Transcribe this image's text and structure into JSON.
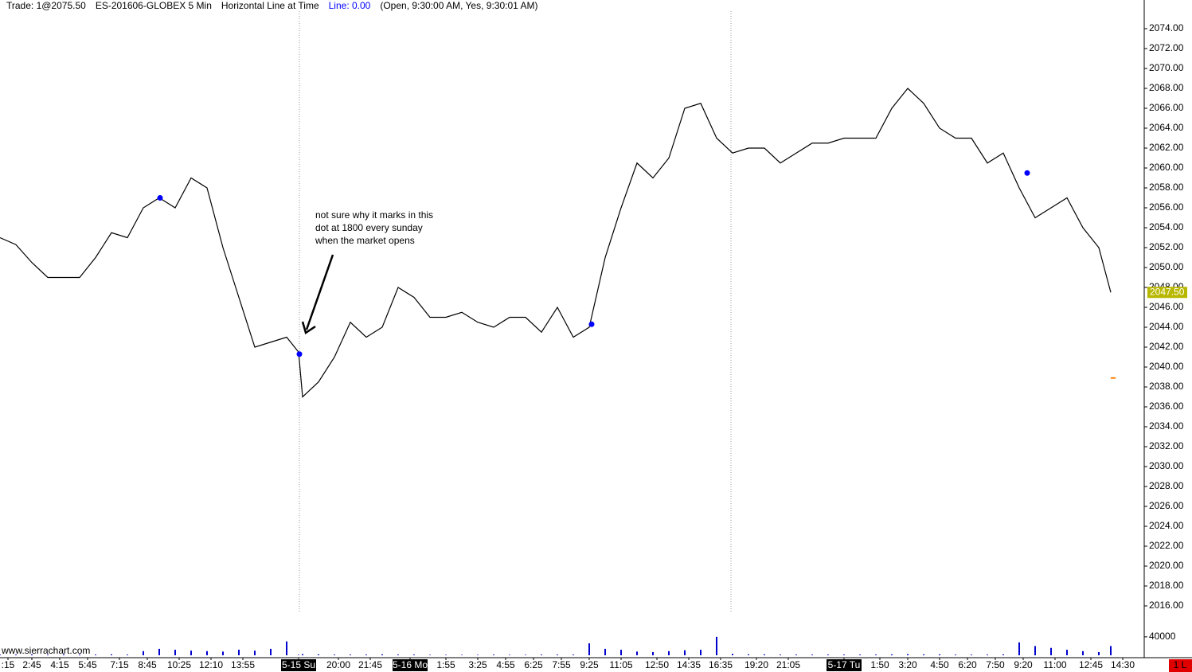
{
  "header": {
    "trade": "Trade: 1@2075.50",
    "symbol": "ES-201606-GLOBEX 5 Min",
    "study": "Horizontal Line at Time",
    "line": "Line: 0.00",
    "params": "(Open, 9:30:00 AM, Yes, 9:30:01 AM)"
  },
  "annotation": [
    "not sure why it marks in this",
    "dot at 1800 every sunday",
    "when the market opens"
  ],
  "watermark": "www.sierrachart.com",
  "status": "1 L",
  "chart_data": {
    "type": "line",
    "color": "#000000",
    "x": [
      0,
      4,
      8,
      12,
      16,
      20,
      24,
      28,
      32,
      36,
      40,
      44,
      48,
      52,
      56,
      60,
      64,
      68,
      72,
      75,
      76,
      80,
      84,
      88,
      92,
      96,
      100,
      104,
      108,
      112,
      116,
      120,
      124,
      128,
      132,
      136,
      140,
      144,
      148,
      152,
      156,
      160,
      164,
      168,
      172,
      176,
      180,
      184,
      188,
      192,
      196,
      200,
      204,
      208,
      212,
      216,
      220,
      224,
      228,
      232,
      236,
      240,
      244,
      248,
      252,
      256,
      260,
      264,
      268,
      272,
      276,
      279
    ],
    "values": [
      2053,
      2052.3,
      2050.5,
      2049,
      2049,
      2049,
      2051,
      2053.5,
      2053,
      2056,
      2057,
      2056,
      2059,
      2058,
      2052,
      2047,
      2042,
      2042.5,
      2043,
      2041.5,
      2037,
      2038.5,
      2041,
      2044.5,
      2043,
      2044,
      2048,
      2047,
      2045,
      2045,
      2045.5,
      2044.5,
      2044,
      2045,
      2045,
      2043.5,
      2046,
      2043,
      2044,
      2051,
      2056,
      2060.5,
      2059,
      2061,
      2066,
      2066.5,
      2063,
      2061.5,
      2062,
      2062,
      2060.5,
      2061.5,
      2062.5,
      2062.5,
      2063,
      2063,
      2063,
      2066,
      2068,
      2066.5,
      2064,
      2063,
      2063,
      2060.5,
      2061.5,
      2058,
      2055,
      2056,
      2057,
      2054,
      2052,
      2047.5
    ],
    "markers": {
      "color": "#0000ff",
      "x": [
        40.2,
        75.2,
        148.6,
        258
      ],
      "values": [
        2057,
        2041.3,
        2044.3,
        2059.5
      ]
    },
    "last_price": {
      "value": 2047.5,
      "label": "2047.50"
    },
    "pending_marker": 2038.9,
    "xlim": [
      0,
      287.4
    ],
    "ylim": [
      2015,
      2075.5
    ],
    "xticks": [
      {
        "value": 2,
        "label": ":15"
      },
      {
        "value": 8,
        "label": "2:45"
      },
      {
        "value": 15,
        "label": "4:15"
      },
      {
        "value": 22,
        "label": "5:45"
      },
      {
        "value": 30,
        "label": "7:15"
      },
      {
        "value": 37,
        "label": "8:45"
      },
      {
        "value": 45,
        "label": "10:25"
      },
      {
        "value": 53,
        "label": "12:10"
      },
      {
        "value": 61,
        "label": "13:55"
      },
      {
        "value": 75,
        "label": "5-15 Su",
        "session": true
      },
      {
        "value": 85,
        "label": "20:00"
      },
      {
        "value": 93,
        "label": "21:45"
      },
      {
        "value": 103,
        "label": "5-16 Mo",
        "session": true
      },
      {
        "value": 112,
        "label": "1:55"
      },
      {
        "value": 120,
        "label": "3:25"
      },
      {
        "value": 127,
        "label": "4:55"
      },
      {
        "value": 134,
        "label": "6:25"
      },
      {
        "value": 141,
        "label": "7:55"
      },
      {
        "value": 148,
        "label": "9:25"
      },
      {
        "value": 156,
        "label": "11:05"
      },
      {
        "value": 165,
        "label": "12:50"
      },
      {
        "value": 173,
        "label": "14:35"
      },
      {
        "value": 181,
        "label": "16:35"
      },
      {
        "value": 190,
        "label": "19:20"
      },
      {
        "value": 198,
        "label": "21:05"
      },
      {
        "value": 212,
        "label": "5-17 Tu",
        "session": true
      },
      {
        "value": 221,
        "label": "1:50"
      },
      {
        "value": 228,
        "label": "3:20"
      },
      {
        "value": 236,
        "label": "4:50"
      },
      {
        "value": 243,
        "label": "6:20"
      },
      {
        "value": 250,
        "label": "7:50"
      },
      {
        "value": 257,
        "label": "9:20"
      },
      {
        "value": 265,
        "label": "11:00"
      },
      {
        "value": 274,
        "label": "12:45"
      },
      {
        "value": 282,
        "label": "14:30"
      }
    ],
    "yticks": [
      {
        "value": 2074,
        "label": "2074.00"
      },
      {
        "value": 2072,
        "label": "2072.00"
      },
      {
        "value": 2070,
        "label": "2070.00"
      },
      {
        "value": 2068,
        "label": "2068.00"
      },
      {
        "value": 2066,
        "label": "2066.00"
      },
      {
        "value": 2064,
        "label": "2064.00"
      },
      {
        "value": 2062,
        "label": "2062.00"
      },
      {
        "value": 2060,
        "label": "2060.00"
      },
      {
        "value": 2058,
        "label": "2058.00"
      },
      {
        "value": 2056,
        "label": "2056.00"
      },
      {
        "value": 2054,
        "label": "2054.00"
      },
      {
        "value": 2052,
        "label": "2052.00"
      },
      {
        "value": 2050,
        "label": "2050.00"
      },
      {
        "value": 2048,
        "label": "2048.00"
      },
      {
        "value": 2046,
        "label": "2046.00"
      },
      {
        "value": 2044,
        "label": "2044.00"
      },
      {
        "value": 2042,
        "label": "2042.00"
      },
      {
        "value": 2040,
        "label": "2040.00"
      },
      {
        "value": 2038,
        "label": "2038.00"
      },
      {
        "value": 2036,
        "label": "2036.00"
      },
      {
        "value": 2034,
        "label": "2034.00"
      },
      {
        "value": 2032,
        "label": "2032.00"
      },
      {
        "value": 2030,
        "label": "2030.00"
      },
      {
        "value": 2028,
        "label": "2028.00"
      },
      {
        "value": 2026,
        "label": "2026.00"
      },
      {
        "value": 2024,
        "label": "2024.00"
      },
      {
        "value": 2022,
        "label": "2022.00"
      },
      {
        "value": 2020,
        "label": "2020.00"
      },
      {
        "value": 2018,
        "label": "2018.00"
      },
      {
        "value": 2016,
        "label": "2016.00"
      }
    ],
    "volume": {
      "color": "#0000cc",
      "ylim": [
        0,
        95000
      ],
      "yticks": [
        40000
      ],
      "values": [
        1500,
        1500,
        2000,
        1500,
        2000,
        1500,
        1500,
        2000,
        1500,
        9000,
        14000,
        12000,
        10000,
        9000,
        8000,
        12000,
        10000,
        14000,
        30000,
        1000,
        2500,
        2000,
        1500,
        1500,
        1500,
        2000,
        1500,
        1500,
        1000,
        1000,
        1000,
        1000,
        1500,
        1000,
        1000,
        1500,
        1500,
        1500,
        26000,
        14000,
        12000,
        8000,
        7000,
        9000,
        11000,
        12000,
        40000,
        3000,
        2000,
        2000,
        1500,
        1500,
        1500,
        1500,
        1500,
        1500,
        1500,
        2000,
        2500,
        2000,
        2000,
        1500,
        1500,
        1500,
        2000,
        28000,
        20000,
        16000,
        12000,
        9000,
        7000,
        20000
      ]
    }
  }
}
